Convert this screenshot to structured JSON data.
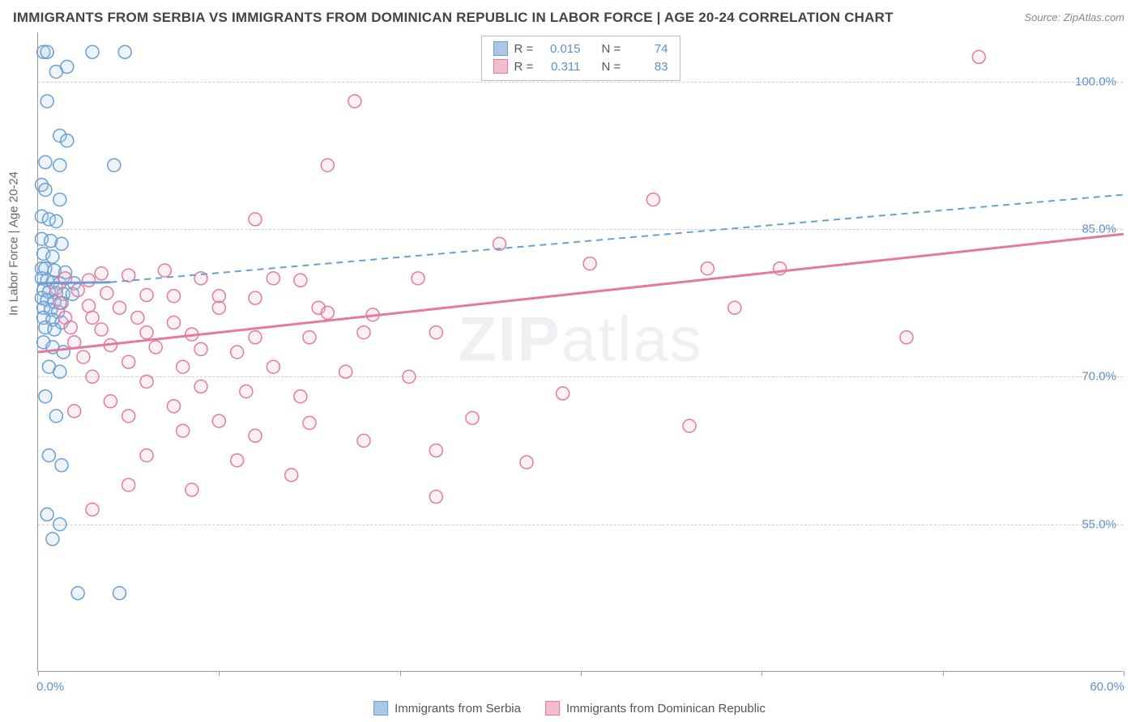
{
  "title": "IMMIGRANTS FROM SERBIA VS IMMIGRANTS FROM DOMINICAN REPUBLIC IN LABOR FORCE | AGE 20-24 CORRELATION CHART",
  "source": "Source: ZipAtlas.com",
  "watermark_1": "ZIP",
  "watermark_2": "atlas",
  "y_axis_title": "In Labor Force | Age 20-24",
  "chart": {
    "type": "scatter-correlation",
    "xlim": [
      0,
      60
    ],
    "ylim": [
      40,
      105
    ],
    "x_ticks": [
      0,
      10,
      20,
      30,
      40,
      50,
      60
    ],
    "x_tick_labels_shown": {
      "0": "0.0%",
      "60": "60.0%"
    },
    "y_ticks": [
      55,
      70,
      85,
      100
    ],
    "y_tick_labels": [
      "55.0%",
      "70.0%",
      "85.0%",
      "100.0%"
    ],
    "background_color": "#ffffff",
    "grid_color": "#cccccc",
    "axis_color": "#999999",
    "label_color": "#5b8fd6",
    "marker_radius": 8,
    "marker_stroke_width": 1.5,
    "marker_fill_opacity": 0.22
  },
  "series": [
    {
      "name": "Immigrants from Serbia",
      "color_stroke": "#6a9fd4",
      "color_fill": "#a9c7e8",
      "r_label": "R =",
      "r_value": "0.015",
      "n_label": "N =",
      "n_value": "74",
      "trend": {
        "x1": 0,
        "y1": 79.5,
        "x2": 4,
        "y2": 79.6,
        "solid": true
      },
      "trend_ext": {
        "x1": 4,
        "y1": 79.6,
        "x2": 60,
        "y2": 88.5,
        "dashed": true
      },
      "points": [
        [
          0.3,
          103
        ],
        [
          0.5,
          103
        ],
        [
          3,
          103
        ],
        [
          4.8,
          103
        ],
        [
          1.6,
          101.5
        ],
        [
          1.0,
          101
        ],
        [
          0.5,
          98
        ],
        [
          1.2,
          94.5
        ],
        [
          1.6,
          94
        ],
        [
          0.4,
          91.8
        ],
        [
          1.2,
          91.5
        ],
        [
          4.2,
          91.5
        ],
        [
          0.2,
          89.5
        ],
        [
          0.4,
          89
        ],
        [
          1.2,
          88
        ],
        [
          0.2,
          86.3
        ],
        [
          0.6,
          86
        ],
        [
          1.0,
          85.8
        ],
        [
          0.2,
          84
        ],
        [
          0.7,
          83.8
        ],
        [
          1.3,
          83.5
        ],
        [
          0.3,
          82.5
        ],
        [
          0.8,
          82.2
        ],
        [
          0.2,
          81
        ],
        [
          0.4,
          81
        ],
        [
          0.9,
          80.8
        ],
        [
          1.5,
          80.6
        ],
        [
          0.2,
          80
        ],
        [
          0.5,
          79.8
        ],
        [
          0.8,
          79.6
        ],
        [
          1.2,
          79.5
        ],
        [
          2.0,
          79.5
        ],
        [
          0.3,
          78.8
        ],
        [
          0.6,
          78.6
        ],
        [
          1.0,
          78.5
        ],
        [
          1.4,
          78.4
        ],
        [
          1.9,
          78.4
        ],
        [
          0.2,
          78
        ],
        [
          0.5,
          77.8
        ],
        [
          0.9,
          77.6
        ],
        [
          1.3,
          77.5
        ],
        [
          0.3,
          77
        ],
        [
          0.7,
          76.8
        ],
        [
          1.1,
          76.6
        ],
        [
          0.3,
          76
        ],
        [
          0.8,
          75.8
        ],
        [
          1.3,
          75.5
        ],
        [
          0.4,
          75
        ],
        [
          0.9,
          74.8
        ],
        [
          0.3,
          73.5
        ],
        [
          0.8,
          73
        ],
        [
          1.4,
          72.5
        ],
        [
          0.6,
          71
        ],
        [
          1.2,
          70.5
        ],
        [
          0.4,
          68
        ],
        [
          1.0,
          66
        ],
        [
          0.6,
          62
        ],
        [
          1.3,
          61
        ],
        [
          0.5,
          56
        ],
        [
          1.2,
          55
        ],
        [
          0.8,
          53.5
        ],
        [
          2.2,
          48
        ],
        [
          4.5,
          48
        ]
      ]
    },
    {
      "name": "Immigrants from Dominican Republic",
      "color_stroke": "#e47a9c",
      "color_fill": "#f4bcce",
      "r_label": "R =",
      "r_value": "0.311",
      "n_label": "N =",
      "n_value": "83",
      "trend": {
        "x1": 0,
        "y1": 72.5,
        "x2": 60,
        "y2": 84.5,
        "solid": true
      },
      "points": [
        [
          52,
          102.5
        ],
        [
          17.5,
          98
        ],
        [
          16,
          91.5
        ],
        [
          34,
          88
        ],
        [
          12,
          86
        ],
        [
          25.5,
          83.5
        ],
        [
          30.5,
          81.5
        ],
        [
          37,
          81
        ],
        [
          41,
          81
        ],
        [
          7,
          80.8
        ],
        [
          3.5,
          80.5
        ],
        [
          5,
          80.3
        ],
        [
          1.5,
          80
        ],
        [
          2.8,
          79.8
        ],
        [
          9,
          80
        ],
        [
          13,
          80
        ],
        [
          14.5,
          79.8
        ],
        [
          21,
          80
        ],
        [
          1.0,
          79
        ],
        [
          2.2,
          78.8
        ],
        [
          3.8,
          78.5
        ],
        [
          6,
          78.3
        ],
        [
          7.5,
          78.2
        ],
        [
          10,
          78.2
        ],
        [
          12,
          78
        ],
        [
          1.2,
          77.5
        ],
        [
          2.8,
          77.2
        ],
        [
          4.5,
          77
        ],
        [
          10,
          77
        ],
        [
          15.5,
          77
        ],
        [
          38.5,
          77
        ],
        [
          1.5,
          76
        ],
        [
          3,
          76
        ],
        [
          5.5,
          76
        ],
        [
          7.5,
          75.5
        ],
        [
          16,
          76.5
        ],
        [
          18.5,
          76.3
        ],
        [
          1.8,
          75
        ],
        [
          3.5,
          74.8
        ],
        [
          6,
          74.5
        ],
        [
          8.5,
          74.3
        ],
        [
          12,
          74
        ],
        [
          15,
          74
        ],
        [
          18,
          74.5
        ],
        [
          22,
          74.5
        ],
        [
          48,
          74
        ],
        [
          2,
          73.5
        ],
        [
          4,
          73.2
        ],
        [
          6.5,
          73
        ],
        [
          9,
          72.8
        ],
        [
          11,
          72.5
        ],
        [
          2.5,
          72
        ],
        [
          5,
          71.5
        ],
        [
          8,
          71
        ],
        [
          13,
          71
        ],
        [
          17,
          70.5
        ],
        [
          20.5,
          70
        ],
        [
          3,
          70
        ],
        [
          6,
          69.5
        ],
        [
          9,
          69
        ],
        [
          11.5,
          68.5
        ],
        [
          14.5,
          68
        ],
        [
          29,
          68.3
        ],
        [
          4,
          67.5
        ],
        [
          7.5,
          67
        ],
        [
          2,
          66.5
        ],
        [
          5,
          66
        ],
        [
          10,
          65.5
        ],
        [
          15,
          65.3
        ],
        [
          8,
          64.5
        ],
        [
          12,
          64
        ],
        [
          18,
          63.5
        ],
        [
          24,
          65.8
        ],
        [
          36,
          65
        ],
        [
          6,
          62
        ],
        [
          11,
          61.5
        ],
        [
          22,
          62.5
        ],
        [
          27,
          61.3
        ],
        [
          14,
          60
        ],
        [
          5,
          59
        ],
        [
          8.5,
          58.5
        ],
        [
          22,
          57.8
        ],
        [
          3,
          56.5
        ]
      ]
    }
  ],
  "legend_bottom": [
    {
      "label": "Immigrants from Serbia",
      "stroke": "#6a9fd4",
      "fill": "#a9c7e8"
    },
    {
      "label": "Immigrants from Dominican Republic",
      "stroke": "#e47a9c",
      "fill": "#f4bcce"
    }
  ]
}
